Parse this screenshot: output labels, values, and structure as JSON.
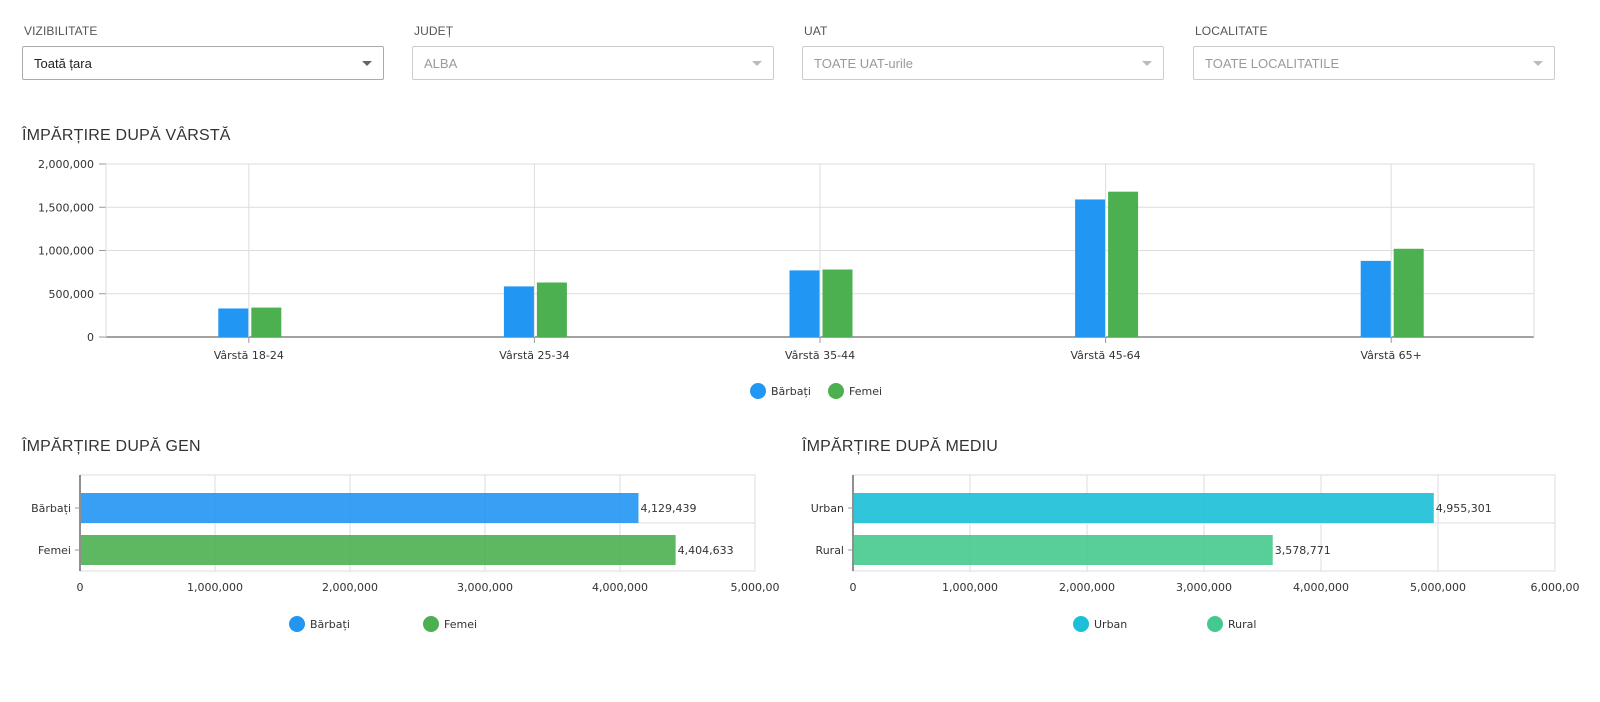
{
  "filters": [
    {
      "label": "VIZIBILITATE",
      "value": "Toată țara",
      "enabled": true
    },
    {
      "label": "JUDEȚ",
      "value": "ALBA",
      "enabled": false
    },
    {
      "label": "UAT",
      "value": "TOATE UAT-urile",
      "enabled": false
    },
    {
      "label": "LOCALITATE",
      "value": "TOATE LOCALITATILE",
      "enabled": false
    }
  ],
  "colors": {
    "barbati": "#2196F3",
    "femei": "#4CAF50",
    "urban": "#1BBFD8",
    "rural": "#46C98E"
  },
  "chart_data": [
    {
      "type": "bar",
      "title": "ÎMPĂRȚIRE DUPĂ VÂRSTĂ",
      "categories": [
        "Vârstă 18-24",
        "Vârstă 25-34",
        "Vârstă 35-44",
        "Vârstă 45-64",
        "Vârstă 65+"
      ],
      "series": [
        {
          "name": "Bărbați",
          "values": [
            330000,
            585000,
            770000,
            1590000,
            880000
          ]
        },
        {
          "name": "Femei",
          "values": [
            340000,
            630000,
            780000,
            1680000,
            1020000
          ]
        }
      ],
      "ylim": [
        0,
        2000000
      ],
      "yticks": [
        "2,000,000",
        "1,500,000",
        "1,000,000",
        "500,000",
        "0"
      ],
      "grid": true,
      "legend": "bottom"
    },
    {
      "type": "bar",
      "orientation": "horizontal",
      "title": "ÎMPĂRȚIRE DUPĂ GEN",
      "categories": [
        "Bărbați",
        "Femei"
      ],
      "values": [
        4129439,
        4404633
      ],
      "value_labels": [
        "4,129,439",
        "4,404,633"
      ],
      "xlim": [
        0,
        5000000
      ],
      "xticks": [
        "0",
        "1,000,000",
        "2,000,000",
        "3,000,000",
        "4,000,000",
        "5,000,00"
      ],
      "legend_entries": [
        "Bărbați",
        "Femei"
      ],
      "grid": true,
      "legend": "bottom"
    },
    {
      "type": "bar",
      "orientation": "horizontal",
      "title": "ÎMPĂRȚIRE DUPĂ MEDIU",
      "categories": [
        "Urban",
        "Rural"
      ],
      "values": [
        4955301,
        3578771
      ],
      "value_labels": [
        "4,955,301",
        "3,578,771"
      ],
      "xlim": [
        0,
        6000000
      ],
      "xticks": [
        "0",
        "1,000,000",
        "2,000,000",
        "3,000,000",
        "4,000,000",
        "5,000,000",
        "6,000,00"
      ],
      "legend_entries": [
        "Urban",
        "Rural"
      ],
      "grid": true,
      "legend": "bottom"
    }
  ]
}
